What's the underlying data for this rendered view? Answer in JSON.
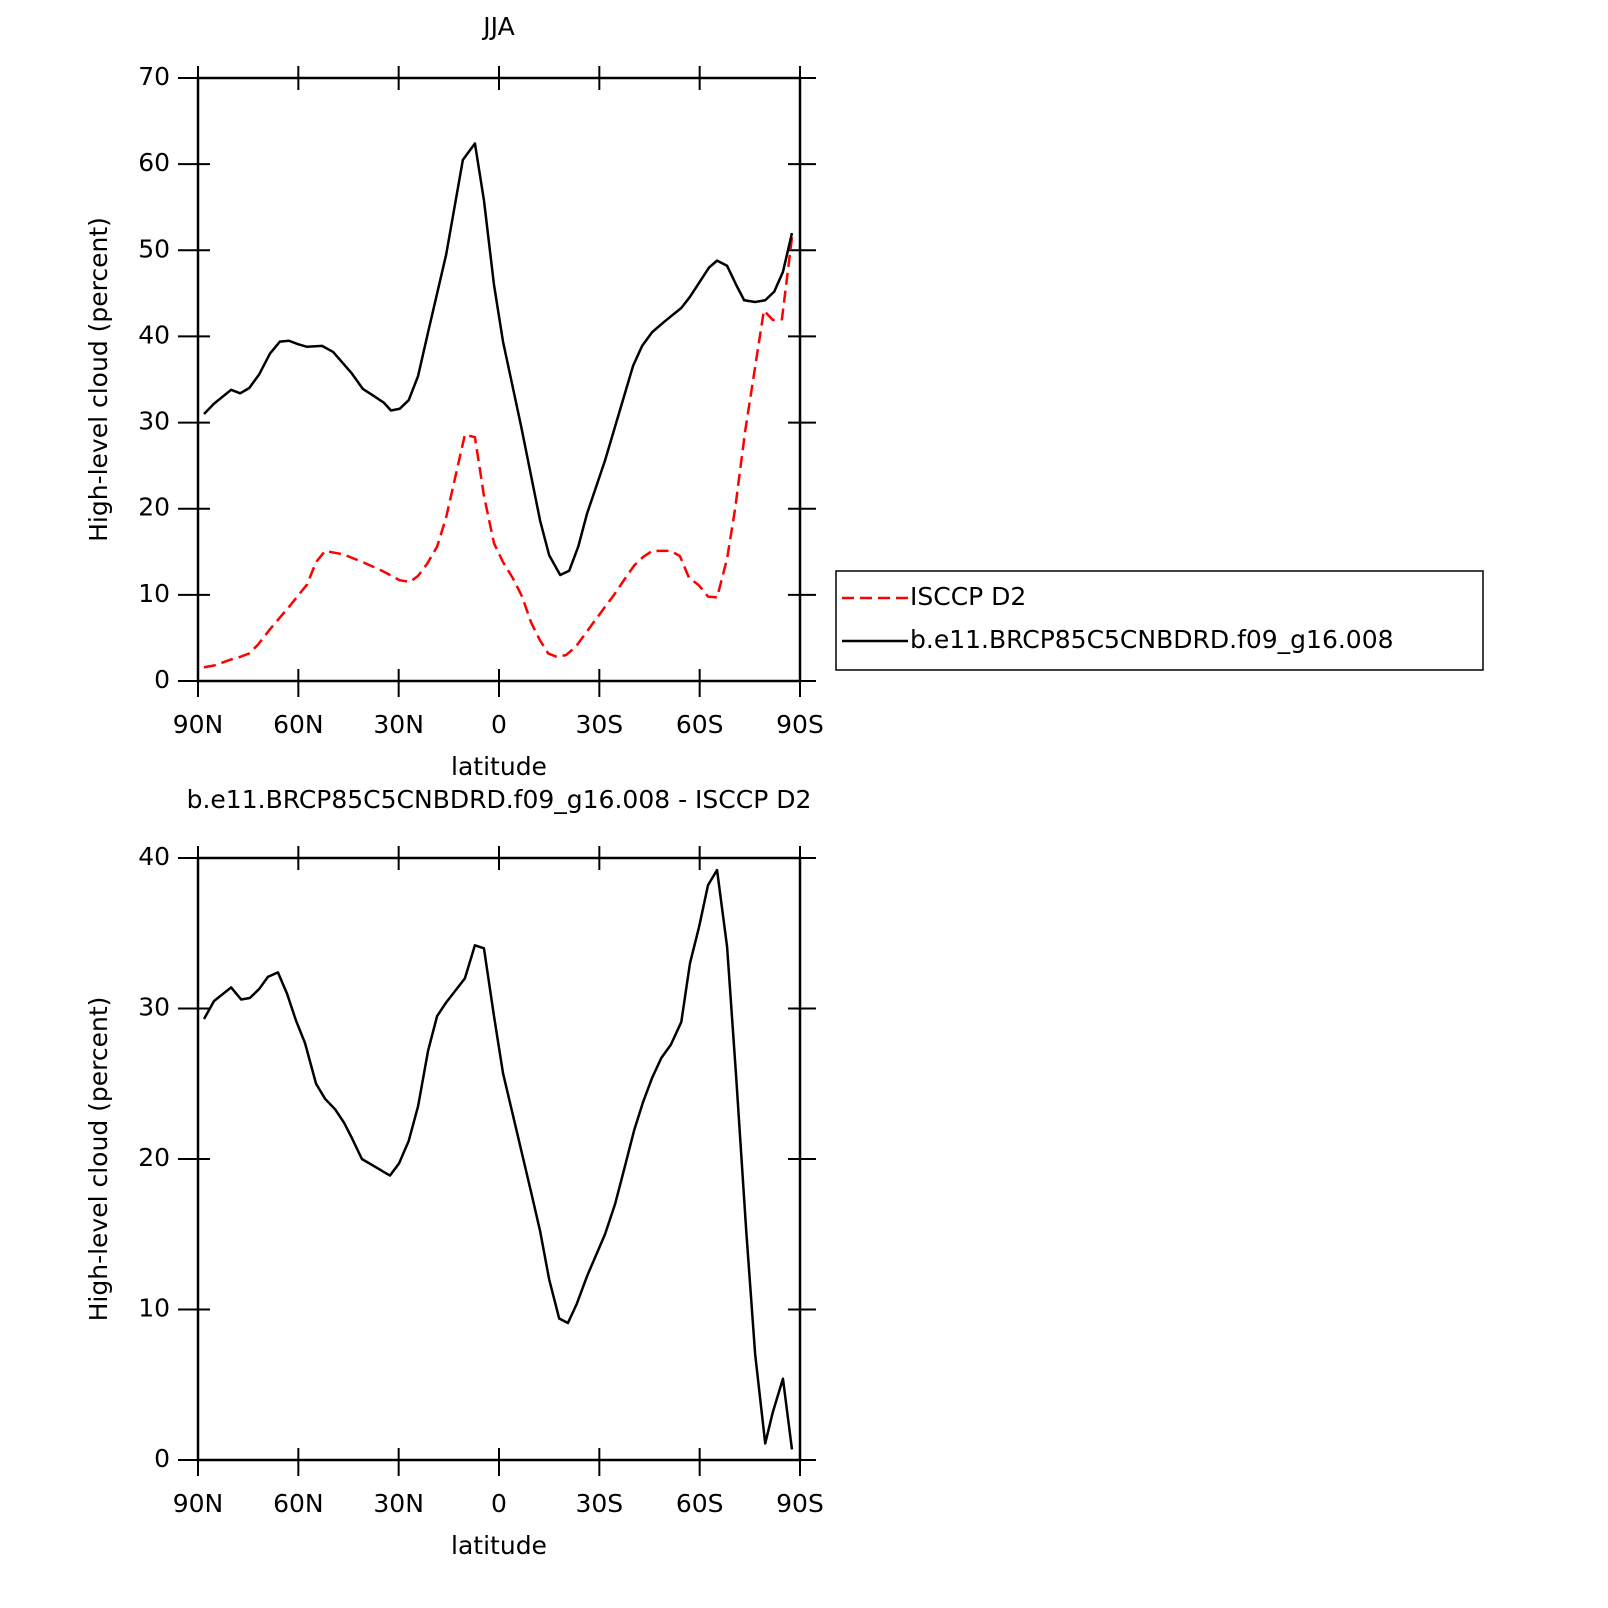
{
  "chart_data": [
    {
      "type": "line",
      "title": "JJA",
      "xlabel": "latitude",
      "ylabel": "High-level cloud (percent)",
      "xlim": [
        90,
        -90
      ],
      "ylim": [
        0,
        70
      ],
      "xticks": [
        {
          "value": 90,
          "label": "90N"
        },
        {
          "value": 60,
          "label": "60N"
        },
        {
          "value": 30,
          "label": "30N"
        },
        0,
        {
          "value": -30,
          "label": "30S"
        },
        {
          "value": -60,
          "label": "60S"
        },
        {
          "value": -90,
          "label": "90S"
        }
      ],
      "yticks": [
        0,
        10,
        20,
        30,
        40,
        50,
        60,
        70
      ],
      "legend": "right",
      "series": [
        {
          "name": "ISCCP D2",
          "color": "#ff0000",
          "dash": true,
          "x": [
            88.2,
            85.2,
            80.1,
            77.4,
            74.7,
            72.1,
            68.5,
            62.8,
            57.4,
            54.7,
            52,
            46.6,
            40.7,
            35,
            29.7,
            26.6,
            24.2,
            21.5,
            18.5,
            15.8,
            10.2,
            7.2,
            4.5,
            1.5,
            -1.2,
            -4.2,
            -6.9,
            -9.6,
            -12.3,
            -14.7,
            -17.3,
            -20,
            -23,
            -26,
            -31.7,
            -34.4,
            -37.7,
            -40.4,
            -43.1,
            -45.8,
            -51.4,
            -54.1,
            -56.8,
            -59.8,
            -62.5,
            -65.2,
            -68.2,
            -70.6,
            -73.6,
            -76.6,
            -79.2,
            -81.9,
            -84.6,
            -87.6
          ],
          "values": [
            1.6,
            1.8,
            2.5,
            2.8,
            3.2,
            4.2,
            6,
            8.6,
            11.2,
            13.8,
            15.1,
            14.7,
            13.8,
            12.8,
            11.7,
            11.5,
            12.2,
            13.6,
            15.6,
            19,
            28.6,
            28.3,
            21.5,
            16,
            13.8,
            11.9,
            9.8,
            6.8,
            4.7,
            3.2,
            2.8,
            3,
            4,
            5.6,
            8.6,
            10,
            11.9,
            13.4,
            14.4,
            15.1,
            15.1,
            14.5,
            12,
            11.1,
            9.8,
            9.7,
            14.2,
            20,
            29,
            36.5,
            43,
            41.9,
            42,
            51.5
          ]
        },
        {
          "name": "b.e11.BRCP85C5CNBDRD.f09_g16.008",
          "color": "#000000",
          "dash": false,
          "x": [
            88.2,
            85.2,
            80.1,
            77.4,
            74.7,
            71.7,
            68.5,
            65.5,
            62.8,
            60.1,
            57.4,
            52.9,
            49.6,
            44,
            40.7,
            37.1,
            34.4,
            32.3,
            29.7,
            27,
            24.2,
            21.2,
            15.8,
            10.8,
            7.2,
            4.5,
            1.5,
            -1.2,
            -6.6,
            -12.3,
            -15,
            -18.3,
            -21,
            -23.7,
            -26.3,
            -31.7,
            -40.1,
            -42.8,
            -45.8,
            -49.7,
            -54.5,
            -57.1,
            -62.8,
            -65.2,
            -68.2,
            -70.9,
            -73.3,
            -76.6,
            -79.6,
            -82.3,
            -84.9,
            -87.6
          ],
          "values": [
            31,
            32.2,
            33.8,
            33.4,
            34,
            35.6,
            38,
            39.4,
            39.5,
            39.1,
            38.8,
            38.9,
            38.2,
            35.7,
            33.9,
            33,
            32.3,
            31.4,
            31.6,
            32.6,
            35.4,
            40.5,
            49.5,
            60.5,
            62.4,
            55.8,
            46,
            39.4,
            29.6,
            18.6,
            14.6,
            12.3,
            12.8,
            15.6,
            19.4,
            25.6,
            36.6,
            38.9,
            40.5,
            41.8,
            43.3,
            44.6,
            48,
            48.8,
            48.2,
            46,
            44.2,
            44,
            44.2,
            45.2,
            47.5,
            52
          ]
        }
      ]
    },
    {
      "type": "line",
      "title": "b.e11.BRCP85C5CNBDRD.f09_g16.008 - ISCCP D2",
      "xlabel": "latitude",
      "ylabel": "High-level cloud (percent)",
      "xlim": [
        90,
        -90
      ],
      "ylim": [
        0,
        40
      ],
      "xticks": [
        {
          "value": 90,
          "label": "90N"
        },
        {
          "value": 60,
          "label": "60N"
        },
        {
          "value": 30,
          "label": "30N"
        },
        0,
        {
          "value": -30,
          "label": "30S"
        },
        {
          "value": -60,
          "label": "60S"
        },
        {
          "value": -90,
          "label": "90S"
        }
      ],
      "yticks": [
        0,
        10,
        20,
        30,
        40
      ],
      "series": [
        {
          "color": "#000000",
          "dash": false,
          "x": [
            88.2,
            85.2,
            80.1,
            77.1,
            74.5,
            71.7,
            69.1,
            66.1,
            63.4,
            60.7,
            58,
            54.7,
            52,
            49,
            46.3,
            44,
            41,
            32.6,
            29.9,
            27,
            24.2,
            21.2,
            18.5,
            15.8,
            10.2,
            7.2,
            4.5,
            1.5,
            -1.2,
            -9.6,
            -12.3,
            -15,
            -18,
            -20.6,
            -23.3,
            -26.3,
            -31.7,
            -34.7,
            -37.4,
            -40.4,
            -43.1,
            -45.8,
            -48.5,
            -51.4,
            -54.5,
            -57.1,
            -59.8,
            -62.5,
            -65.2,
            -68.2,
            -70.9,
            -73.9,
            -76.6,
            -79.6,
            -81.9,
            -84.9,
            -87.6
          ],
          "values": [
            29.3,
            30.5,
            31.4,
            30.6,
            30.7,
            31.3,
            32.1,
            32.4,
            31,
            29.2,
            27.7,
            25,
            24,
            23.3,
            22.4,
            21.4,
            20,
            18.9,
            19.7,
            21.2,
            23.5,
            27.2,
            29.5,
            30.4,
            32,
            34.2,
            34,
            29.5,
            25.7,
            17.8,
            15.2,
            12,
            9.4,
            9.1,
            10.4,
            12.2,
            15,
            17,
            19.3,
            21.9,
            23.8,
            25.4,
            26.7,
            27.6,
            29.1,
            33,
            35.4,
            38.2,
            39.2,
            34.1,
            25.5,
            15.3,
            7,
            1.1,
            3.2,
            5.4,
            0.7
          ]
        }
      ]
    }
  ]
}
